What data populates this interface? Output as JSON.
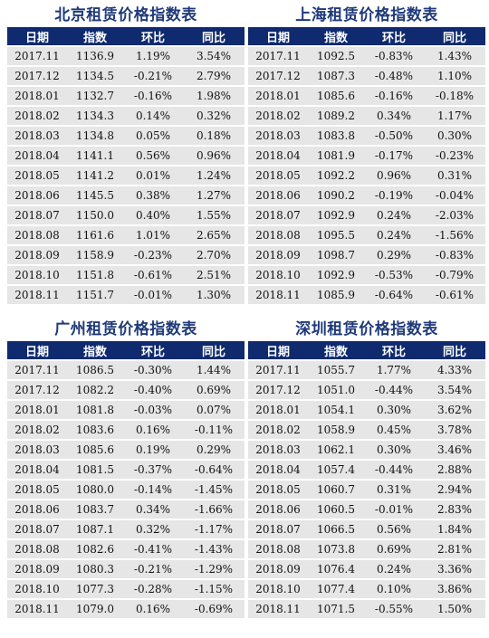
{
  "headers": [
    "日期",
    "指数",
    "环比",
    "同比"
  ],
  "colors": {
    "header_bg": "#0f2a6e",
    "title": "#1f3a7a",
    "row_bg": "#e6e6e6"
  },
  "tables": {
    "beijing": {
      "title": "北京租赁价格指数表",
      "rows": [
        [
          "2017.11",
          "1136.9",
          "1.19%",
          "3.54%"
        ],
        [
          "2017.12",
          "1134.5",
          "-0.21%",
          "2.79%"
        ],
        [
          "2018.01",
          "1132.7",
          "-0.16%",
          "1.98%"
        ],
        [
          "2018.02",
          "1134.3",
          "0.14%",
          "0.32%"
        ],
        [
          "2018.03",
          "1134.8",
          "0.05%",
          "0.18%"
        ],
        [
          "2018.04",
          "1141.1",
          "0.56%",
          "0.96%"
        ],
        [
          "2018.05",
          "1141.2",
          "0.01%",
          "1.24%"
        ],
        [
          "2018.06",
          "1145.5",
          "0.38%",
          "1.27%"
        ],
        [
          "2018.07",
          "1150.0",
          "0.40%",
          "1.55%"
        ],
        [
          "2018.08",
          "1161.6",
          "1.01%",
          "2.65%"
        ],
        [
          "2018.09",
          "1158.9",
          "-0.23%",
          "2.70%"
        ],
        [
          "2018.10",
          "1151.8",
          "-0.61%",
          "2.51%"
        ],
        [
          "2018.11",
          "1151.7",
          "-0.01%",
          "1.30%"
        ]
      ]
    },
    "shanghai": {
      "title": "上海租赁价格指数表",
      "rows": [
        [
          "2017.11",
          "1092.5",
          "-0.83%",
          "1.43%"
        ],
        [
          "2017.12",
          "1087.3",
          "-0.48%",
          "1.10%"
        ],
        [
          "2018.01",
          "1085.6",
          "-0.16%",
          "-0.18%"
        ],
        [
          "2018.02",
          "1089.2",
          "0.34%",
          "1.17%"
        ],
        [
          "2018.03",
          "1083.8",
          "-0.50%",
          "0.30%"
        ],
        [
          "2018.04",
          "1081.9",
          "-0.17%",
          "-0.23%"
        ],
        [
          "2018.05",
          "1092.2",
          "0.96%",
          "0.31%"
        ],
        [
          "2018.06",
          "1090.2",
          "-0.19%",
          "-0.04%"
        ],
        [
          "2018.07",
          "1092.9",
          "0.24%",
          "-2.03%"
        ],
        [
          "2018.08",
          "1095.5",
          "0.24%",
          "-1.56%"
        ],
        [
          "2018.09",
          "1098.7",
          "0.29%",
          "-0.83%"
        ],
        [
          "2018.10",
          "1092.9",
          "-0.53%",
          "-0.79%"
        ],
        [
          "2018.11",
          "1085.9",
          "-0.64%",
          "-0.61%"
        ]
      ]
    },
    "guangzhou": {
      "title": "广州租赁价格指数表",
      "rows": [
        [
          "2017.11",
          "1086.5",
          "-0.30%",
          "1.44%"
        ],
        [
          "2017.12",
          "1082.2",
          "-0.40%",
          "0.69%"
        ],
        [
          "2018.01",
          "1081.8",
          "-0.03%",
          "0.07%"
        ],
        [
          "2018.02",
          "1083.6",
          "0.16%",
          "-0.11%"
        ],
        [
          "2018.03",
          "1085.6",
          "0.19%",
          "0.29%"
        ],
        [
          "2018.04",
          "1081.5",
          "-0.37%",
          "-0.64%"
        ],
        [
          "2018.05",
          "1080.0",
          "-0.14%",
          "-1.45%"
        ],
        [
          "2018.06",
          "1083.7",
          "0.34%",
          "-1.66%"
        ],
        [
          "2018.07",
          "1087.1",
          "0.32%",
          "-1.17%"
        ],
        [
          "2018.08",
          "1082.6",
          "-0.41%",
          "-1.43%"
        ],
        [
          "2018.09",
          "1080.3",
          "-0.21%",
          "-1.29%"
        ],
        [
          "2018.10",
          "1077.3",
          "-0.28%",
          "-1.15%"
        ],
        [
          "2018.11",
          "1079.0",
          "0.16%",
          "-0.69%"
        ]
      ]
    },
    "shenzhen": {
      "title": "深圳租赁价格指数表",
      "rows": [
        [
          "2017.11",
          "1055.7",
          "1.77%",
          "4.33%"
        ],
        [
          "2017.12",
          "1051.0",
          "-0.44%",
          "3.54%"
        ],
        [
          "2018.01",
          "1054.1",
          "0.30%",
          "3.62%"
        ],
        [
          "2018.02",
          "1058.9",
          "0.45%",
          "3.78%"
        ],
        [
          "2018.03",
          "1062.1",
          "0.30%",
          "3.46%"
        ],
        [
          "2018.04",
          "1057.4",
          "-0.44%",
          "2.88%"
        ],
        [
          "2018.05",
          "1060.7",
          "0.31%",
          "2.94%"
        ],
        [
          "2018.06",
          "1060.5",
          "-0.01%",
          "2.83%"
        ],
        [
          "2018.07",
          "1066.5",
          "0.56%",
          "1.84%"
        ],
        [
          "2018.08",
          "1073.8",
          "0.69%",
          "2.81%"
        ],
        [
          "2018.09",
          "1076.4",
          "0.24%",
          "3.36%"
        ],
        [
          "2018.10",
          "1077.4",
          "0.10%",
          "3.86%"
        ],
        [
          "2018.11",
          "1071.5",
          "-0.55%",
          "1.50%"
        ]
      ]
    }
  }
}
